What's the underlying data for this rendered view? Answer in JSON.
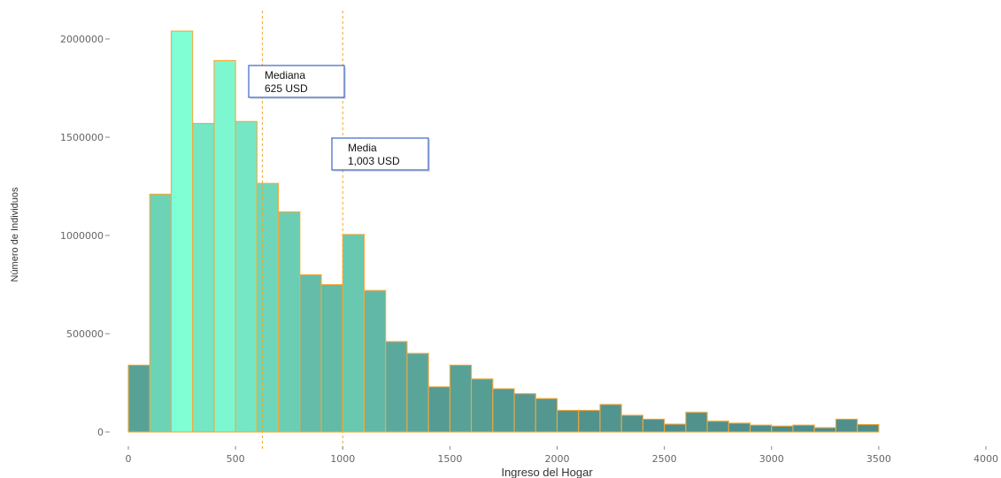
{
  "chart_data": {
    "type": "bar",
    "title": "",
    "xlabel": "Ingreso del Hogar",
    "ylabel": "Número de Individuos",
    "xlim": [
      0,
      4000
    ],
    "ylim": [
      0,
      2000000
    ],
    "grid": false,
    "bin_width": 100,
    "bins": [
      {
        "x0": 0,
        "x1": 100,
        "value": 340000
      },
      {
        "x0": 100,
        "x1": 200,
        "value": 1210000
      },
      {
        "x0": 200,
        "x1": 300,
        "value": 2040000
      },
      {
        "x0": 300,
        "x1": 400,
        "value": 1570000
      },
      {
        "x0": 400,
        "x1": 500,
        "value": 1890000
      },
      {
        "x0": 500,
        "x1": 600,
        "value": 1580000
      },
      {
        "x0": 600,
        "x1": 700,
        "value": 1265000
      },
      {
        "x0": 700,
        "x1": 800,
        "value": 1120000
      },
      {
        "x0": 800,
        "x1": 900,
        "value": 800000
      },
      {
        "x0": 900,
        "x1": 1000,
        "value": 750000
      },
      {
        "x0": 1000,
        "x1": 1100,
        "value": 1005000
      },
      {
        "x0": 1100,
        "x1": 1200,
        "value": 720000
      },
      {
        "x0": 1200,
        "x1": 1300,
        "value": 460000
      },
      {
        "x0": 1300,
        "x1": 1400,
        "value": 400000
      },
      {
        "x0": 1400,
        "x1": 1500,
        "value": 230000
      },
      {
        "x0": 1500,
        "x1": 1600,
        "value": 340000
      },
      {
        "x0": 1600,
        "x1": 1700,
        "value": 270000
      },
      {
        "x0": 1700,
        "x1": 1800,
        "value": 220000
      },
      {
        "x0": 1800,
        "x1": 1900,
        "value": 195000
      },
      {
        "x0": 1900,
        "x1": 2000,
        "value": 170000
      },
      {
        "x0": 2000,
        "x1": 2100,
        "value": 110000
      },
      {
        "x0": 2100,
        "x1": 2200,
        "value": 110000
      },
      {
        "x0": 2200,
        "x1": 2300,
        "value": 140000
      },
      {
        "x0": 2300,
        "x1": 2400,
        "value": 85000
      },
      {
        "x0": 2400,
        "x1": 2500,
        "value": 65000
      },
      {
        "x0": 2500,
        "x1": 2600,
        "value": 40000
      },
      {
        "x0": 2600,
        "x1": 2700,
        "value": 100000
      },
      {
        "x0": 2700,
        "x1": 2800,
        "value": 55000
      },
      {
        "x0": 2800,
        "x1": 2900,
        "value": 45000
      },
      {
        "x0": 2900,
        "x1": 3000,
        "value": 35000
      },
      {
        "x0": 3000,
        "x1": 3100,
        "value": 30000
      },
      {
        "x0": 3100,
        "x1": 3200,
        "value": 35000
      },
      {
        "x0": 3200,
        "x1": 3300,
        "value": 22000
      },
      {
        "x0": 3300,
        "x1": 3400,
        "value": 65000
      },
      {
        "x0": 3400,
        "x1": 3500,
        "value": 38000
      }
    ],
    "x_ticks": [
      0,
      500,
      1000,
      1500,
      2000,
      2500,
      3000,
      3500,
      4000
    ],
    "y_ticks": [
      0,
      500000,
      1000000,
      1500000,
      2000000
    ],
    "reference_lines": [
      {
        "x": 625,
        "label": "Mediana",
        "value_label": "625 USD"
      },
      {
        "x": 1000,
        "label": "Media",
        "value_label": "1,003 USD"
      }
    ],
    "colors": {
      "fill_low": "#4e8a88",
      "fill_high": "#80ffd4",
      "bar_outline": "#f2a93b",
      "reference_line": "#f5a623",
      "annotation_border": "#3b63c4"
    }
  }
}
